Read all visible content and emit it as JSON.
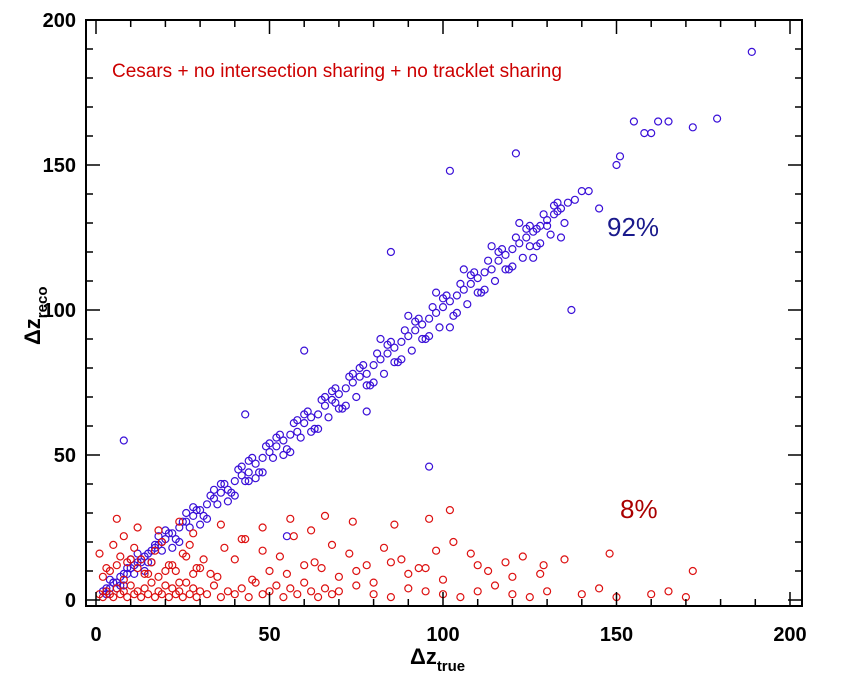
{
  "chart_data": {
    "type": "scatter",
    "title": "",
    "xlabel": "Δz",
    "xlabel_sub": "true",
    "ylabel": "Δz",
    "ylabel_sub": "reco",
    "xlim": [
      0,
      200
    ],
    "ylim": [
      0,
      200
    ],
    "x_ticks": [
      "0",
      "50",
      "100",
      "150",
      "200"
    ],
    "y_ticks": [
      "0",
      "50",
      "100",
      "150",
      "200"
    ],
    "grid": false,
    "annotations": [
      {
        "text": "Cesars + no intersection sharing + no tracklet sharing",
        "color": "#cc0000"
      },
      {
        "text": "92%",
        "color": "#1a1a8c"
      },
      {
        "text": "8%",
        "color": "#aa0000"
      }
    ],
    "series": [
      {
        "color": "#3a10d8",
        "marker": "open-circle",
        "x": [
          2,
          3,
          4,
          5,
          6,
          7,
          8,
          9,
          10,
          11,
          12,
          13,
          14,
          15,
          16,
          17,
          18,
          19,
          20,
          22,
          24,
          26,
          28,
          30,
          32,
          34,
          36,
          38,
          40,
          42,
          44,
          46,
          48,
          50,
          52,
          54,
          56,
          58,
          60,
          62,
          64,
          66,
          68,
          70,
          72,
          74,
          76,
          78,
          80,
          82,
          84,
          86,
          88,
          90,
          92,
          94,
          96,
          98,
          100,
          102,
          104,
          106,
          108,
          110,
          112,
          114,
          116,
          118,
          120,
          122,
          124,
          126,
          128,
          130,
          132,
          134,
          136,
          138,
          3,
          5,
          7,
          9,
          11,
          13,
          15,
          17,
          19,
          21,
          23,
          25,
          27,
          29,
          31,
          33,
          35,
          37,
          39,
          41,
          43,
          45,
          47,
          49,
          51,
          53,
          55,
          57,
          59,
          61,
          63,
          65,
          67,
          69,
          71,
          73,
          75,
          77,
          79,
          81,
          83,
          85,
          87,
          89,
          91,
          93,
          95,
          97,
          99,
          101,
          103,
          105,
          107,
          109,
          111,
          113,
          115,
          117,
          119,
          121,
          123,
          125,
          127,
          129,
          131,
          133,
          135,
          4,
          8,
          12,
          16,
          20,
          24,
          28,
          32,
          36,
          40,
          44,
          48,
          52,
          56,
          60,
          64,
          68,
          72,
          76,
          80,
          84,
          88,
          92,
          96,
          100,
          104,
          108,
          112,
          116,
          120,
          124,
          128,
          132,
          6,
          10,
          14,
          18,
          22,
          26,
          30,
          34,
          38,
          42,
          46,
          50,
          54,
          58,
          62,
          66,
          70,
          74,
          78,
          82,
          86,
          90,
          94,
          98,
          102,
          106,
          110,
          114,
          118,
          122,
          126,
          8,
          55,
          43,
          44,
          60,
          69,
          96,
          102,
          78,
          85,
          121,
          125,
          134,
          137,
          140,
          142,
          145,
          150,
          151,
          155,
          158,
          160,
          162,
          165,
          172,
          179,
          189,
          133,
          130,
          127
        ],
        "y": [
          3,
          4,
          4,
          6,
          6,
          8,
          9,
          9,
          11,
          12,
          13,
          13,
          15,
          16,
          17,
          18,
          19,
          20,
          21,
          23,
          25,
          27,
          29,
          31,
          33,
          35,
          37,
          38,
          41,
          43,
          44,
          47,
          49,
          51,
          53,
          55,
          57,
          58,
          61,
          63,
          64,
          67,
          69,
          71,
          73,
          75,
          77,
          78,
          81,
          83,
          85,
          87,
          89,
          91,
          93,
          95,
          97,
          99,
          101,
          103,
          105,
          107,
          109,
          111,
          113,
          114,
          117,
          119,
          121,
          123,
          125,
          127,
          129,
          131,
          133,
          135,
          137,
          138,
          2,
          6,
          5,
          11,
          9,
          14,
          13,
          19,
          17,
          23,
          21,
          27,
          25,
          31,
          29,
          36,
          33,
          40,
          37,
          45,
          41,
          49,
          44,
          53,
          49,
          57,
          52,
          61,
          56,
          65,
          59,
          69,
          63,
          73,
          66,
          77,
          70,
          81,
          74,
          85,
          78,
          89,
          82,
          93,
          86,
          97,
          90,
          101,
          94,
          105,
          98,
          109,
          102,
          113,
          106,
          117,
          110,
          121,
          114,
          125,
          118,
          129,
          122,
          133,
          126,
          137,
          130,
          7,
          5,
          16,
          13,
          24,
          20,
          32,
          28,
          40,
          36,
          48,
          44,
          56,
          51,
          64,
          59,
          72,
          67,
          80,
          75,
          88,
          83,
          96,
          91,
          104,
          99,
          112,
          107,
          120,
          115,
          128,
          123,
          136,
          4,
          14,
          10,
          22,
          18,
          30,
          26,
          38,
          34,
          46,
          42,
          54,
          50,
          62,
          58,
          70,
          66,
          78,
          74,
          90,
          82,
          98,
          90,
          106,
          94,
          114,
          106,
          122,
          114,
          130,
          118,
          55,
          22,
          64,
          41,
          86,
          68,
          46,
          148,
          65,
          120,
          154,
          122,
          125,
          100,
          141,
          141,
          135,
          150,
          153,
          165,
          161,
          161,
          165,
          165,
          163,
          166,
          189,
          134,
          129,
          128
        ]
      },
      {
        "color": "#dd1111",
        "marker": "open-circle",
        "x": [
          1,
          2,
          3,
          4,
          5,
          6,
          7,
          8,
          9,
          10,
          11,
          12,
          13,
          14,
          15,
          16,
          17,
          18,
          19,
          20,
          21,
          22,
          23,
          24,
          25,
          26,
          27,
          28,
          29,
          30,
          32,
          34,
          36,
          38,
          40,
          42,
          44,
          46,
          48,
          50,
          52,
          54,
          56,
          58,
          60,
          62,
          64,
          66,
          68,
          70,
          75,
          80,
          85,
          90,
          95,
          100,
          105,
          110,
          115,
          120,
          125,
          130,
          140,
          145,
          150,
          160,
          165,
          170,
          172,
          2,
          4,
          6,
          8,
          10,
          12,
          14,
          16,
          18,
          20,
          22,
          24,
          26,
          28,
          30,
          35,
          40,
          45,
          50,
          55,
          60,
          65,
          70,
          75,
          80,
          85,
          90,
          95,
          100,
          110,
          113,
          120,
          128,
          148,
          1,
          3,
          5,
          7,
          9,
          11,
          13,
          15,
          17,
          19,
          21,
          23,
          25,
          27,
          29,
          31,
          33,
          37,
          43,
          48,
          53,
          57,
          63,
          68,
          73,
          78,
          83,
          88,
          93,
          98,
          103,
          108,
          118,
          123,
          129,
          135,
          6,
          8,
          12,
          18,
          24,
          28,
          36,
          42,
          48,
          56,
          62,
          66,
          74,
          86,
          96,
          102
        ],
        "y": [
          2,
          1,
          3,
          2,
          1,
          4,
          2,
          3,
          1,
          5,
          2,
          3,
          1,
          4,
          2,
          6,
          1,
          3,
          2,
          5,
          1,
          4,
          2,
          3,
          1,
          6,
          2,
          4,
          1,
          3,
          2,
          5,
          1,
          3,
          2,
          4,
          1,
          6,
          2,
          3,
          5,
          1,
          4,
          2,
          6,
          3,
          1,
          4,
          2,
          3,
          5,
          2,
          1,
          4,
          3,
          2,
          1,
          3,
          5,
          2,
          1,
          3,
          2,
          4,
          1,
          2,
          3,
          1,
          10,
          8,
          10,
          12,
          7,
          14,
          11,
          9,
          13,
          8,
          10,
          12,
          6,
          15,
          9,
          11,
          8,
          14,
          7,
          10,
          9,
          12,
          11,
          8,
          10,
          6,
          13,
          9,
          11,
          7,
          12,
          10,
          8,
          9,
          16,
          16,
          11,
          19,
          15,
          13,
          18,
          14,
          9,
          17,
          20,
          12,
          10,
          16,
          19,
          11,
          14,
          9,
          18,
          21,
          17,
          15,
          22,
          13,
          19,
          16,
          12,
          18,
          14,
          11,
          17,
          20,
          16,
          13,
          15,
          12,
          14,
          28,
          22,
          25,
          24,
          27,
          23,
          26,
          21,
          25,
          28,
          24,
          29,
          27,
          26,
          28,
          31
        ]
      }
    ]
  }
}
